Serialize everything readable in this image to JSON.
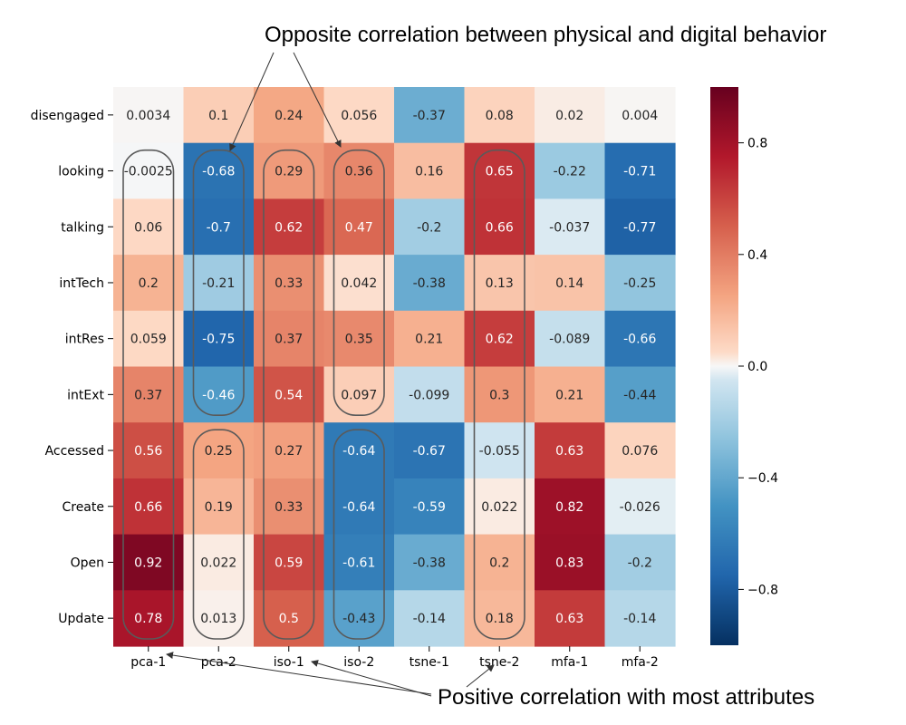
{
  "chart_data": {
    "type": "heatmap",
    "rows": [
      "disengaged",
      "looking",
      "talking",
      "intTech",
      "intRes",
      "intExt",
      "Accessed",
      "Create",
      "Open",
      "Update"
    ],
    "columns": [
      "pca-1",
      "pca-2",
      "iso-1",
      "iso-2",
      "tsne-1",
      "tsne-2",
      "mfa-1",
      "mfa-2"
    ],
    "values": [
      [
        "0.0034",
        "0.1",
        "0.24",
        "0.056",
        "-0.37",
        "0.08",
        "0.02",
        "0.004"
      ],
      [
        "-0.0025",
        "-0.68",
        "0.29",
        "0.36",
        "0.16",
        "0.65",
        "-0.22",
        "-0.71"
      ],
      [
        "0.06",
        "-0.7",
        "0.62",
        "0.47",
        "-0.2",
        "0.66",
        "-0.037",
        "-0.77"
      ],
      [
        "0.2",
        "-0.21",
        "0.33",
        "0.042",
        "-0.38",
        "0.13",
        "0.14",
        "-0.25"
      ],
      [
        "0.059",
        "-0.75",
        "0.37",
        "0.35",
        "0.21",
        "0.62",
        "-0.089",
        "-0.66"
      ],
      [
        "0.37",
        "-0.46",
        "0.54",
        "0.097",
        "-0.099",
        "0.3",
        "0.21",
        "-0.44"
      ],
      [
        "0.56",
        "0.25",
        "0.27",
        "-0.64",
        "-0.67",
        "-0.055",
        "0.63",
        "0.076"
      ],
      [
        "0.66",
        "0.19",
        "0.33",
        "-0.64",
        "-0.59",
        "0.022",
        "0.82",
        "-0.026"
      ],
      [
        "0.92",
        "0.022",
        "0.59",
        "-0.61",
        "-0.38",
        "0.2",
        "0.83",
        "-0.2"
      ],
      [
        "0.78",
        "0.013",
        "0.5",
        "-0.43",
        "-0.14",
        "0.18",
        "0.63",
        "-0.14"
      ]
    ],
    "colorbar": {
      "vmin": -1.0,
      "vmax": 1.0,
      "colormap": "RdBu_r",
      "ticks": [
        0.8,
        0.4,
        0.0,
        -0.4,
        -0.8
      ],
      "tick_labels": [
        "0.8",
        "0.4",
        "0.0",
        "−0.4",
        "−0.8"
      ]
    },
    "highlight_groups": [
      {
        "column": "pca-1",
        "row_start": "looking",
        "row_end": "Update"
      },
      {
        "column": "pca-2",
        "row_start": "looking",
        "row_end": "intExt"
      },
      {
        "column": "pca-2",
        "row_start": "Accessed",
        "row_end": "Update"
      },
      {
        "column": "iso-1",
        "row_start": "looking",
        "row_end": "Update"
      },
      {
        "column": "iso-2",
        "row_start": "looking",
        "row_end": "intExt"
      },
      {
        "column": "iso-2",
        "row_start": "Accessed",
        "row_end": "Update"
      },
      {
        "column": "tsne-2",
        "row_start": "looking",
        "row_end": "Update"
      }
    ],
    "annotations": [
      {
        "text": "Opposite correlation between physical and digital behavior",
        "points_to": [
          "pca-2 / looking",
          "iso-2 / looking"
        ]
      },
      {
        "text": "Positive correlation with most attributes",
        "points_to": [
          "pca-1",
          "iso-1",
          "tsne-2"
        ]
      }
    ],
    "grid": false
  }
}
